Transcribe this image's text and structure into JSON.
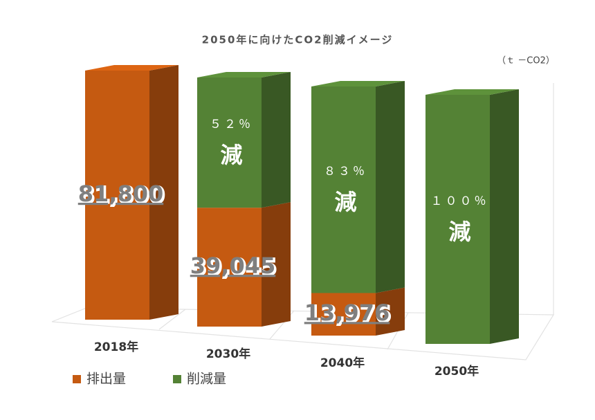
{
  "chart_data": {
    "type": "bar3d_stacked",
    "title": "2050年に向けたCO2削減イメージ",
    "unit_label": "（ｔ －CO2）",
    "categories": [
      "2018年",
      "2030年",
      "2040年",
      "2050年"
    ],
    "series": [
      {
        "name": "排出量",
        "color": "#c55a11",
        "values": [
          81800,
          39045,
          13976,
          0
        ],
        "value_labels": [
          "81,800",
          "39,045",
          "13,976",
          null
        ]
      },
      {
        "name": "削減量",
        "color": "#548235",
        "values": [
          0,
          42755,
          67824,
          81800
        ]
      }
    ],
    "annotations": [
      {
        "category": "2030年",
        "lines": [
          "５２％",
          "減"
        ]
      },
      {
        "category": "2040年",
        "lines": [
          "８３％",
          "減"
        ]
      },
      {
        "category": "2050年",
        "lines": [
          "１００％",
          "減"
        ]
      }
    ],
    "legend": "bottom-left"
  }
}
